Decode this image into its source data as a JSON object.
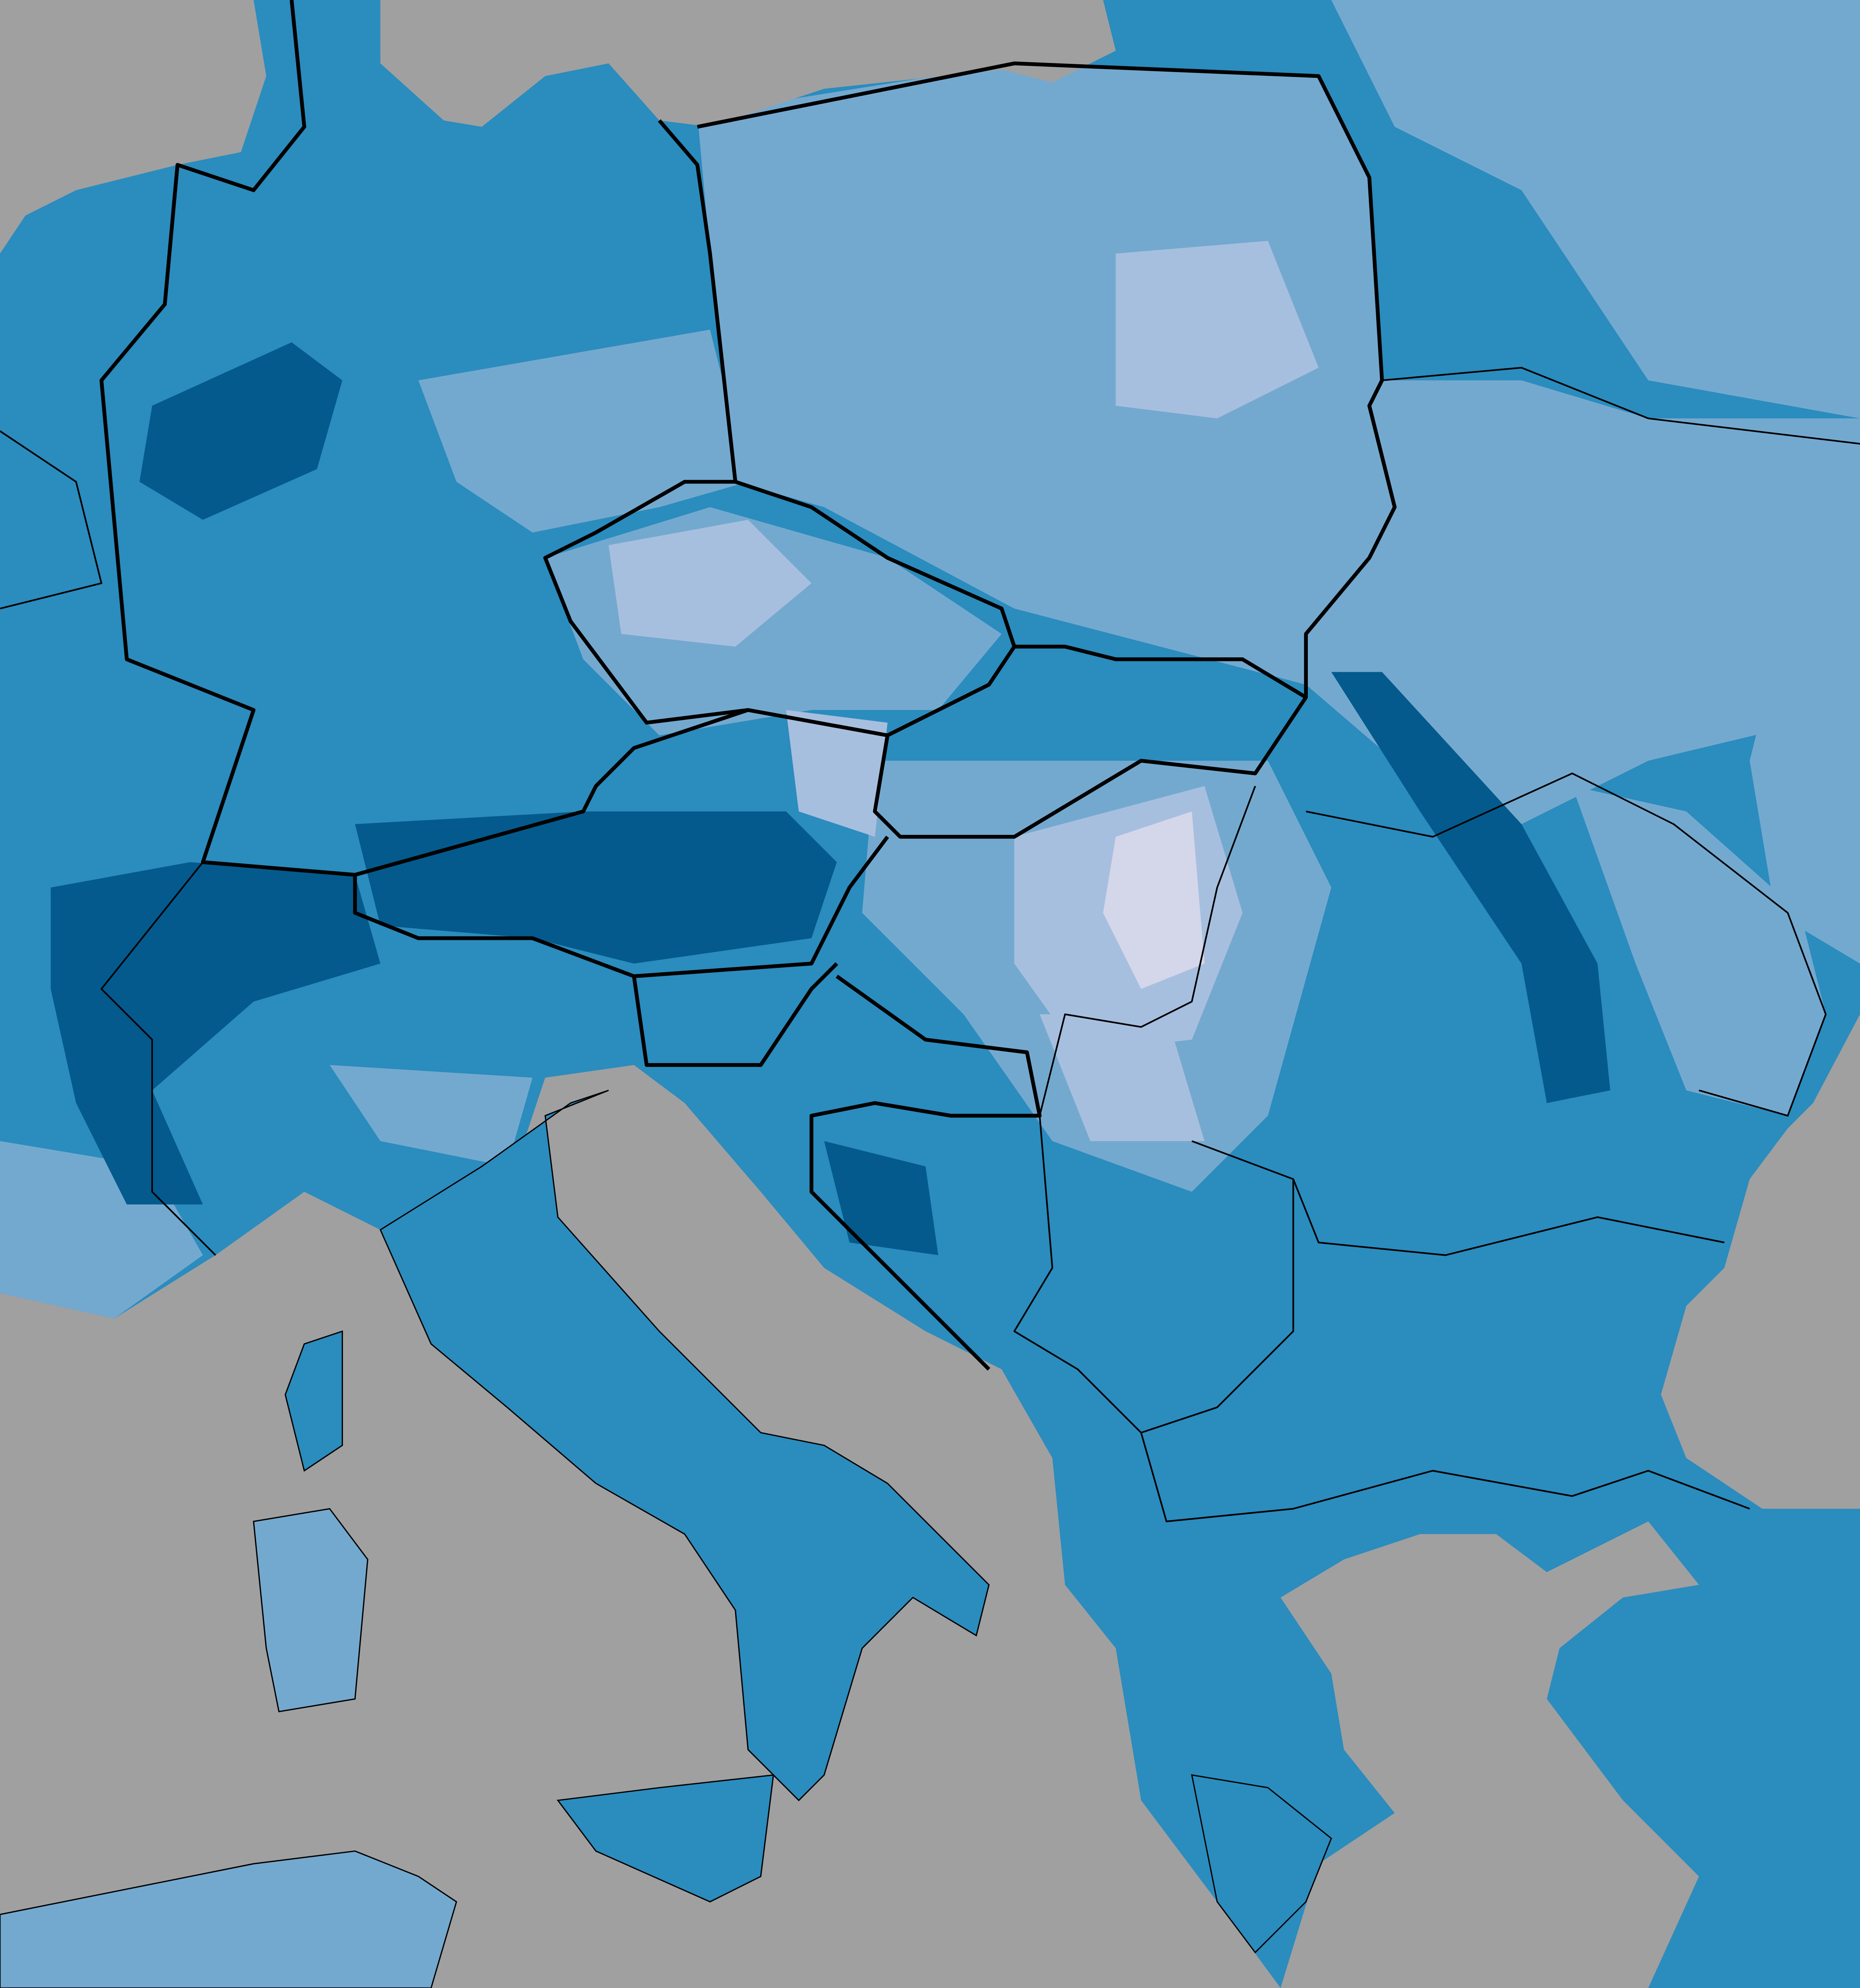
{
  "map": {
    "sea_color": "#a0a0a0",
    "levels": [
      "#d4d6ea",
      "#a7bfdf",
      "#74a9cf",
      "#2b8cbe",
      "#045a8d"
    ]
  }
}
